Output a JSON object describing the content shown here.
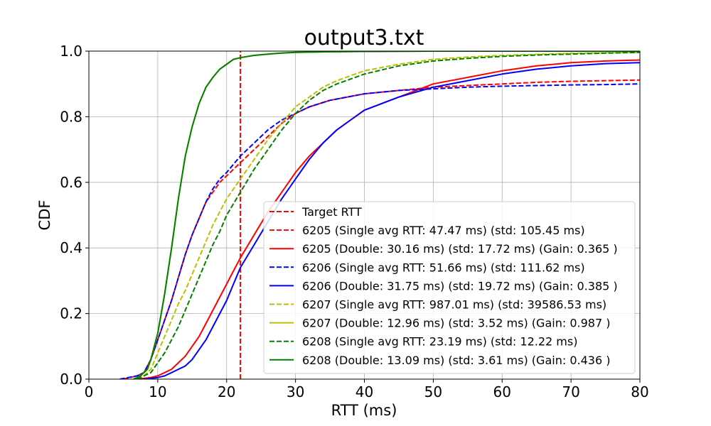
{
  "chart_data": {
    "type": "line",
    "title": "output3.txt",
    "xlabel": "RTT (ms)",
    "ylabel": "CDF",
    "xlim": [
      0,
      80
    ],
    "ylim": [
      0.0,
      1.0
    ],
    "xticks": [
      "0",
      "10",
      "20",
      "30",
      "40",
      "50",
      "60",
      "70",
      "80"
    ],
    "yticks": [
      "0.0",
      "0.2",
      "0.4",
      "0.6",
      "0.8",
      "1.0"
    ],
    "grid": true,
    "legend_position": "lower-right",
    "target_rtt": 22,
    "series": [
      {
        "name": "Target RTT",
        "color": "#ff0000",
        "dash": "dashed",
        "x": [
          22,
          22
        ],
        "y": [
          0,
          1
        ]
      },
      {
        "name": "6205 (Single avg RTT: 47.47 ms) (std: 105.45 ms)",
        "color": "#ff0000",
        "dash": "dashed",
        "x": [
          5,
          7,
          8,
          9,
          10,
          11,
          12,
          13,
          14,
          15,
          16,
          17,
          18,
          19,
          20,
          22,
          24,
          26,
          28,
          30,
          32,
          35,
          40,
          45,
          50,
          55,
          60,
          65,
          70,
          75,
          80
        ],
        "y": [
          0,
          0.01,
          0.02,
          0.06,
          0.12,
          0.18,
          0.24,
          0.31,
          0.38,
          0.44,
          0.49,
          0.54,
          0.57,
          0.6,
          0.62,
          0.66,
          0.7,
          0.74,
          0.78,
          0.81,
          0.83,
          0.85,
          0.87,
          0.88,
          0.89,
          0.895,
          0.9,
          0.905,
          0.908,
          0.91,
          0.912
        ]
      },
      {
        "name": "6205 (Double: 30.16 ms) (std: 17.72 ms) (Gain: 0.365 )",
        "color": "#ff0000",
        "dash": "solid",
        "x": [
          7,
          9,
          10,
          11,
          12,
          13,
          14,
          15,
          16,
          17,
          18,
          19,
          20,
          21,
          22,
          24,
          26,
          28,
          30,
          32,
          34,
          36,
          38,
          40,
          45,
          50,
          55,
          60,
          65,
          70,
          75,
          80
        ],
        "y": [
          0,
          0.005,
          0.01,
          0.02,
          0.03,
          0.05,
          0.07,
          0.1,
          0.13,
          0.17,
          0.21,
          0.25,
          0.29,
          0.33,
          0.37,
          0.44,
          0.51,
          0.57,
          0.63,
          0.68,
          0.72,
          0.76,
          0.79,
          0.82,
          0.86,
          0.9,
          0.92,
          0.94,
          0.955,
          0.965,
          0.97,
          0.973
        ]
      },
      {
        "name": "6206 (Single avg RTT: 51.66 ms) (std: 111.62 ms)",
        "color": "#0000ff",
        "dash": "dashed",
        "x": [
          4.5,
          7,
          8,
          9,
          10,
          11,
          12,
          13,
          14,
          15,
          16,
          17,
          18,
          19,
          20,
          22,
          24,
          26,
          28,
          30,
          32,
          35,
          40,
          45,
          50,
          55,
          60,
          65,
          70,
          75,
          80
        ],
        "y": [
          0,
          0.01,
          0.02,
          0.06,
          0.12,
          0.18,
          0.24,
          0.31,
          0.38,
          0.44,
          0.49,
          0.54,
          0.58,
          0.61,
          0.63,
          0.68,
          0.72,
          0.76,
          0.79,
          0.81,
          0.83,
          0.85,
          0.87,
          0.88,
          0.885,
          0.89,
          0.893,
          0.895,
          0.897,
          0.898,
          0.9
        ]
      },
      {
        "name": "6206 (Double: 31.75 ms) (std: 19.72 ms) (Gain: 0.385 )",
        "color": "#0000ff",
        "dash": "solid",
        "x": [
          8,
          10,
          11,
          12,
          13,
          14,
          15,
          16,
          17,
          18,
          19,
          20,
          21,
          22,
          24,
          26,
          28,
          30,
          32,
          34,
          36,
          38,
          40,
          45,
          50,
          55,
          60,
          65,
          70,
          75,
          80
        ],
        "y": [
          0,
          0.005,
          0.01,
          0.02,
          0.03,
          0.04,
          0.06,
          0.09,
          0.12,
          0.16,
          0.2,
          0.24,
          0.29,
          0.34,
          0.41,
          0.48,
          0.55,
          0.61,
          0.67,
          0.72,
          0.76,
          0.79,
          0.82,
          0.86,
          0.89,
          0.91,
          0.93,
          0.945,
          0.955,
          0.962,
          0.965
        ]
      },
      {
        "name": "6207 (Single avg RTT: 987.01 ms) (std: 39586.53 ms)",
        "color": "#bfbf00",
        "dash": "dashed",
        "x": [
          7,
          8,
          9,
          10,
          11,
          12,
          13,
          14,
          15,
          16,
          17,
          18,
          19,
          20,
          22,
          24,
          26,
          28,
          30,
          32,
          34,
          36,
          38,
          40,
          45,
          50,
          55,
          60,
          65,
          70,
          75,
          80
        ],
        "y": [
          0,
          0.01,
          0.03,
          0.08,
          0.13,
          0.18,
          0.23,
          0.27,
          0.32,
          0.37,
          0.42,
          0.47,
          0.51,
          0.55,
          0.61,
          0.67,
          0.73,
          0.78,
          0.83,
          0.86,
          0.89,
          0.91,
          0.925,
          0.94,
          0.96,
          0.975,
          0.982,
          0.987,
          0.99,
          0.993,
          0.995,
          0.996
        ]
      },
      {
        "name": "6207 (Double: 12.96 ms) (std: 3.52 ms) (Gain: 0.987 )",
        "color": "#bfbf00",
        "dash": "solid",
        "x": [
          6.5,
          7.5,
          8.5,
          9,
          10,
          11,
          12,
          13,
          14,
          15,
          16,
          17,
          18,
          19,
          20,
          21,
          22,
          24,
          26,
          28,
          30,
          35,
          40,
          50,
          60,
          70,
          80
        ],
        "y": [
          0,
          0.01,
          0.03,
          0.06,
          0.14,
          0.26,
          0.4,
          0.55,
          0.68,
          0.77,
          0.84,
          0.89,
          0.92,
          0.945,
          0.96,
          0.975,
          0.98,
          0.987,
          0.991,
          0.994,
          0.996,
          0.998,
          0.999,
          1.0,
          1.0,
          1.0,
          1.0
        ]
      },
      {
        "name": "6208 (Single avg RTT: 23.19 ms) (std: 12.22 ms)",
        "color": "#008000",
        "dash": "dashed",
        "x": [
          7,
          8,
          9,
          10,
          11,
          12,
          13,
          14,
          15,
          16,
          17,
          18,
          19,
          20,
          22,
          24,
          26,
          28,
          30,
          32,
          34,
          36,
          38,
          40,
          45,
          50,
          55,
          60,
          65,
          70,
          75,
          80
        ],
        "y": [
          0,
          0.01,
          0.02,
          0.05,
          0.08,
          0.12,
          0.16,
          0.21,
          0.26,
          0.31,
          0.36,
          0.41,
          0.45,
          0.5,
          0.57,
          0.64,
          0.7,
          0.76,
          0.81,
          0.85,
          0.88,
          0.9,
          0.915,
          0.93,
          0.955,
          0.97,
          0.978,
          0.984,
          0.988,
          0.991,
          0.994,
          0.996
        ]
      },
      {
        "name": "6208 (Double: 13.09 ms) (std: 3.61 ms) (Gain: 0.436 )",
        "color": "#008000",
        "dash": "solid",
        "x": [
          6.5,
          7.5,
          8.5,
          9,
          10,
          11,
          12,
          13,
          14,
          15,
          16,
          17,
          18,
          19,
          20,
          21,
          22,
          24,
          26,
          28,
          30,
          35,
          40,
          50,
          60,
          70,
          80
        ],
        "y": [
          0,
          0.01,
          0.03,
          0.06,
          0.14,
          0.26,
          0.4,
          0.55,
          0.68,
          0.77,
          0.84,
          0.89,
          0.92,
          0.945,
          0.96,
          0.975,
          0.98,
          0.987,
          0.991,
          0.994,
          0.996,
          0.998,
          0.999,
          1.0,
          1.0,
          1.0,
          1.0
        ]
      }
    ]
  }
}
